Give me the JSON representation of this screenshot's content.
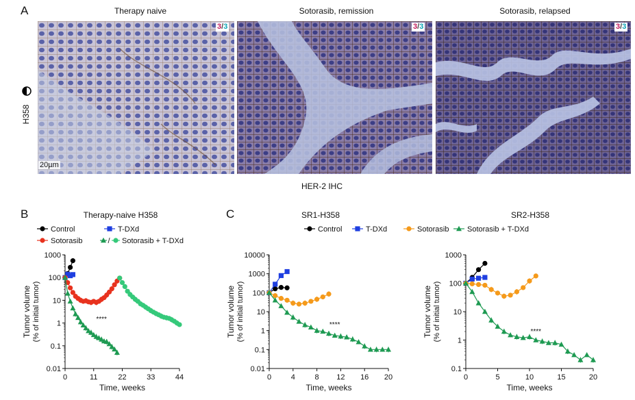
{
  "panel_a": {
    "letter": "A",
    "titles": [
      "Therapy naive",
      "Sotorasib, remission",
      "Sotorasib, relapsed"
    ],
    "ratio_a": "3",
    "ratio_sep": "/",
    "ratio_b": "3",
    "row_label": "H358",
    "scale_label": "20µm",
    "x_caption": "HER-2 IHC"
  },
  "panel_b": {
    "letter": "B"
  },
  "panel_c": {
    "letter": "C"
  },
  "colors": {
    "control": "#000000",
    "tdxd": "#1f3fe0",
    "sotorasib_red": "#e8321e",
    "sotorasib_orange": "#f59a1b",
    "combo_dark": "#1e9a52",
    "combo_light": "#35c97a"
  },
  "chart_data": [
    {
      "type": "line",
      "title": "Therapy-naive H358",
      "xlabel": "Time, weeks",
      "ylabel": "Tumor volume",
      "ylabel2": "(% of initial tumor)",
      "yscale": "log",
      "xlim": [
        0,
        44
      ],
      "ylim": [
        0.01,
        1000
      ],
      "xticks": [
        0,
        11,
        22,
        33,
        44
      ],
      "yticks": [
        0.01,
        0.1,
        1,
        10,
        100,
        1000
      ],
      "ytick_labels": [
        "0.01",
        "0.1",
        "1",
        "10",
        "100",
        "1000"
      ],
      "annotation": "****",
      "legend": [
        {
          "name": "Control",
          "color": "#000000",
          "marker": "circle"
        },
        {
          "name": "T-DXd",
          "color": "#1f3fe0",
          "marker": "square"
        },
        {
          "name": "Sotorasib",
          "color": "#e8321e",
          "marker": "circle"
        },
        {
          "name": "Sotorasib + T-DXd",
          "color": "#35c97a",
          "marker": "circle",
          "prefix_marker": "triangle",
          "prefix_color": "#1e9a52"
        }
      ],
      "series": [
        {
          "name": "Control",
          "color": "#000000",
          "marker": "circle",
          "x": [
            0,
            1,
            2,
            3
          ],
          "y": [
            100,
            150,
            280,
            550
          ]
        },
        {
          "name": "T-DXd",
          "color": "#1f3fe0",
          "marker": "square",
          "x": [
            0,
            1,
            2,
            3
          ],
          "y": [
            100,
            140,
            120,
            135
          ]
        },
        {
          "name": "Sotorasib",
          "color": "#e8321e",
          "marker": "circle",
          "x": [
            0,
            1,
            2,
            3,
            4,
            5,
            6,
            7,
            8,
            9,
            10,
            11,
            12,
            13,
            14,
            15,
            16,
            17,
            18,
            19,
            20,
            21
          ],
          "y": [
            100,
            60,
            35,
            22,
            15,
            12,
            10,
            9,
            9.5,
            8.5,
            8,
            9,
            8,
            9,
            11,
            13,
            17,
            23,
            32,
            48,
            70,
            95
          ]
        },
        {
          "name": "Sotorasib + T-DXd",
          "color": "#1e9a52",
          "marker": "triangle",
          "x": [
            0,
            1,
            2,
            3,
            4,
            5,
            6,
            7,
            8,
            9,
            10,
            11,
            12,
            13,
            14,
            15,
            16,
            17,
            18,
            19,
            20
          ],
          "y": [
            100,
            20,
            9,
            4.5,
            2.5,
            1.7,
            1.1,
            0.8,
            0.6,
            0.45,
            0.38,
            0.3,
            0.25,
            0.22,
            0.19,
            0.16,
            0.15,
            0.12,
            0.09,
            0.07,
            0.05
          ]
        },
        {
          "name": "Sotorasib + T-DXd",
          "color": "#35c97a",
          "marker": "circle",
          "x": [
            21,
            22,
            23,
            24,
            25,
            26,
            27,
            28,
            29,
            30,
            31,
            32,
            33,
            34,
            35,
            36,
            37,
            38,
            39,
            40,
            41,
            42,
            43,
            44
          ],
          "y": [
            95,
            60,
            40,
            25,
            18,
            14,
            11,
            9,
            7,
            6,
            5,
            4.2,
            3.5,
            3,
            2.6,
            2.3,
            2,
            1.8,
            1.7,
            1.6,
            1.4,
            1.2,
            1.0,
            0.85
          ]
        }
      ]
    },
    {
      "type": "line",
      "title": "SR1-H358",
      "xlabel": "Time, weeks",
      "ylabel": "Tumor volume",
      "ylabel2": "(% of initial tumor)",
      "yscale": "log",
      "xlim": [
        0,
        20
      ],
      "ylim": [
        0.01,
        10000
      ],
      "xticks": [
        0,
        4,
        8,
        12,
        16,
        20
      ],
      "yticks": [
        0.01,
        0.1,
        1,
        10,
        100,
        1000,
        10000
      ],
      "ytick_labels": [
        "0.01",
        "0.1",
        "1",
        "10",
        "100",
        "1000",
        "10000"
      ],
      "annotation": "****",
      "legend": [
        {
          "name": "Control",
          "color": "#000000",
          "marker": "circle"
        },
        {
          "name": "T-DXd",
          "color": "#1f3fe0",
          "marker": "square"
        },
        {
          "name": "Sotorasib",
          "color": "#f59a1b",
          "marker": "circle"
        },
        {
          "name": "Sotorasib + T-DXd",
          "color": "#1e9a52",
          "marker": "triangle"
        }
      ],
      "series": [
        {
          "name": "Control",
          "color": "#000000",
          "marker": "circle",
          "x": [
            0,
            1,
            2,
            3
          ],
          "y": [
            100,
            160,
            190,
            180
          ]
        },
        {
          "name": "T-DXd",
          "color": "#1f3fe0",
          "marker": "square",
          "x": [
            0,
            1,
            2,
            3
          ],
          "y": [
            100,
            280,
            800,
            1300
          ]
        },
        {
          "name": "Sotorasib",
          "color": "#f59a1b",
          "marker": "circle",
          "x": [
            0,
            1,
            2,
            3,
            4,
            5,
            6,
            7,
            8,
            9,
            10
          ],
          "y": [
            100,
            70,
            50,
            40,
            28,
            25,
            28,
            35,
            45,
            60,
            85
          ]
        },
        {
          "name": "Sotorasib + T-DXd",
          "color": "#1e9a52",
          "marker": "triangle",
          "x": [
            0,
            1,
            2,
            3,
            4,
            5,
            6,
            7,
            8,
            9,
            10,
            11,
            12,
            13,
            14,
            15,
            16,
            17,
            18,
            19,
            20
          ],
          "y": [
            100,
            40,
            20,
            9,
            5,
            3,
            2,
            1.5,
            1,
            0.9,
            0.7,
            0.55,
            0.5,
            0.45,
            0.35,
            0.25,
            0.15,
            0.1,
            0.1,
            0.1,
            0.1
          ]
        }
      ]
    },
    {
      "type": "line",
      "title": "SR2-H358",
      "xlabel": "Time, weeks",
      "ylabel": "Tumor volume",
      "ylabel2": "(% of initial tumor)",
      "yscale": "log",
      "xlim": [
        0,
        20
      ],
      "ylim": [
        0.1,
        1000
      ],
      "xticks": [
        0,
        5,
        10,
        15,
        20
      ],
      "yticks": [
        0.1,
        1,
        10,
        100,
        1000
      ],
      "ytick_labels": [
        "0.1",
        "1",
        "10",
        "100",
        "1000"
      ],
      "annotation": "****",
      "legend": [],
      "series": [
        {
          "name": "Control",
          "color": "#000000",
          "marker": "circle",
          "x": [
            0,
            1,
            2,
            3
          ],
          "y": [
            100,
            160,
            300,
            500
          ]
        },
        {
          "name": "T-DXd",
          "color": "#1f3fe0",
          "marker": "square",
          "x": [
            0,
            1,
            2,
            3
          ],
          "y": [
            100,
            140,
            150,
            160
          ]
        },
        {
          "name": "Sotorasib",
          "color": "#f59a1b",
          "marker": "circle",
          "x": [
            0,
            1,
            2,
            3,
            4,
            5,
            6,
            7,
            8,
            9,
            10,
            11
          ],
          "y": [
            100,
            95,
            90,
            85,
            60,
            45,
            35,
            38,
            50,
            70,
            120,
            180
          ]
        },
        {
          "name": "Sotorasib + T-DXd",
          "color": "#1e9a52",
          "marker": "triangle",
          "x": [
            0,
            1,
            2,
            3,
            4,
            5,
            6,
            7,
            8,
            9,
            10,
            11,
            12,
            13,
            14,
            15,
            16,
            17,
            18,
            19,
            20
          ],
          "y": [
            100,
            50,
            20,
            10,
            5,
            3,
            2,
            1.5,
            1.3,
            1.2,
            1.3,
            1,
            0.9,
            0.8,
            0.8,
            0.7,
            0.4,
            0.3,
            0.2,
            0.3,
            0.2
          ]
        }
      ]
    }
  ]
}
